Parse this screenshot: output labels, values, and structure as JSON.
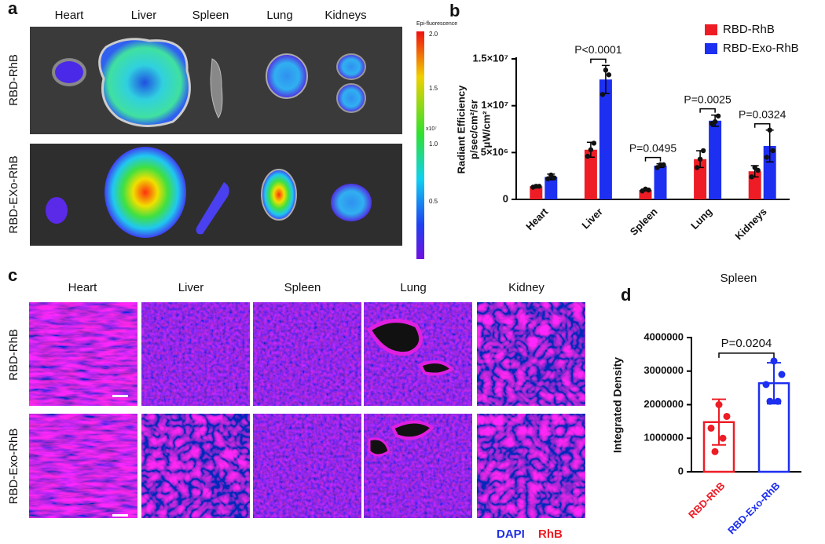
{
  "panel_labels": [
    "a",
    "b",
    "c",
    "d"
  ],
  "figure_a": {
    "columns": [
      "Heart",
      "Liver",
      "Spleen",
      "Lung",
      "Kidneys"
    ],
    "rows": [
      "RBD-RhB",
      "RBD-EXo-RhB"
    ],
    "colorbar_title": "Epi-fluorescence",
    "colorbar_ticks": [
      "2.0",
      "1.5",
      "1.0",
      "0.5"
    ],
    "colorbar_unit": "x10⁷"
  },
  "figure_c": {
    "columns": [
      "Heart",
      "Liver",
      "Spleen",
      "Lung",
      "Kidney"
    ],
    "rows": [
      "RBD-RhB",
      "RBD-Exo-RhB"
    ],
    "stains": [
      "DAPI",
      "RhB"
    ]
  },
  "chart_data": [
    {
      "type": "bar",
      "ylabel": [
        "Radiant Efficiency",
        "p/sec/cm²/sr",
        "μW/cm²"
      ],
      "categories": [
        "Heart",
        "Liver",
        "Spleen",
        "Lung",
        "Kidneys"
      ],
      "series": [
        {
          "name": "RBD-RhB",
          "color": "#ee1c25",
          "values": [
            1400000,
            5300000,
            1000000,
            4300000,
            3000000
          ],
          "errors": [
            100000,
            800000,
            100000,
            900000,
            600000
          ],
          "points": [
            [
              1300000,
              1400000,
              1400000
            ],
            [
              4600000,
              5300000,
              6000000
            ],
            [
              900000,
              1100000,
              1000000
            ],
            [
              3400000,
              4300000,
              5200000
            ],
            [
              2400000,
              3400000,
              3100000
            ]
          ]
        },
        {
          "name": "RBD-Exo-RhB",
          "color": "#1d2ff0",
          "values": [
            2400000,
            12800000,
            3600000,
            8400000,
            5700000
          ],
          "errors": [
            300000,
            1500000,
            200000,
            600000,
            1700000
          ],
          "points": [
            [
              2200000,
              2600000,
              2300000
            ],
            [
              11200000,
              13800000,
              13300000
            ],
            [
              3400000,
              3700000,
              3700000
            ],
            [
              8100000,
              8300000,
              8900000
            ],
            [
              4500000,
              7400000,
              5200000
            ]
          ]
        }
      ],
      "annotations": [
        null,
        "P<0.0001",
        "P=0.0495",
        "P=0.0025",
        "P=0.0324"
      ],
      "ylim": [
        0,
        15000000
      ],
      "yticks": [
        0,
        {
          "value": 5000000,
          "label": "5×10⁶"
        },
        {
          "value": 10000000,
          "label": "1×10⁷"
        },
        {
          "value": 15000000,
          "label": "1.5×10⁷"
        }
      ],
      "legend": "top-right"
    },
    {
      "type": "bar",
      "title": "Spleen",
      "ylabel": "Integrated Density",
      "categories": [
        "RBD-RhB",
        "RBD-Exo-RhB"
      ],
      "colors": [
        "#ee1c25",
        "#1d2ff0"
      ],
      "values": [
        1480000,
        2640000
      ],
      "errors": [
        680000,
        610000
      ],
      "points": [
        [
          2000000,
          1650000,
          1300000,
          1000000,
          600000
        ],
        [
          3300000,
          2900000,
          2600000,
          2100000,
          2100000
        ]
      ],
      "annotation": "P=0.0204",
      "ylim": [
        0,
        4000000
      ],
      "yticks": [
        0,
        1000000,
        2000000,
        3000000,
        4000000
      ]
    }
  ]
}
